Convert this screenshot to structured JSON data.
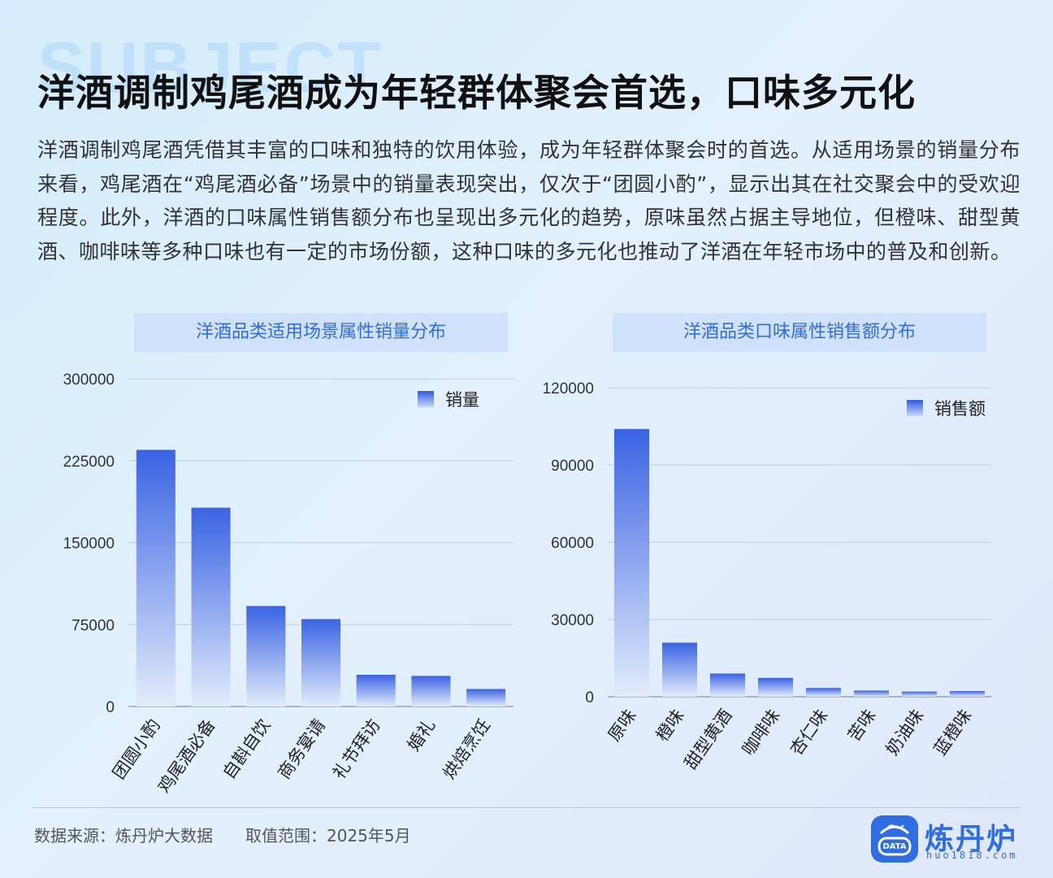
{
  "background_word": "SUBJECT",
  "title": "洋酒调制鸡尾酒成为年轻群体聚会首选，口味多元化",
  "description": "洋酒调制鸡尾酒凭借其丰富的口味和独特的饮用体验，成为年轻群体聚会时的首选。从适用场景的销量分布来看，鸡尾酒在“鸡尾酒必备”场景中的销量表现突出，仅次于“团圆小酌”，显示出其在社交聚会中的受欢迎程度。此外，洋酒的口味属性销售额分布也呈现出多元化的趋势，原味虽然占据主导地位，但橙味、甜型黄酒、咖啡味等多种口味也有一定的市场份额，这种口味的多元化也推动了洋酒在年轻市场中的普及和创新。",
  "colors": {
    "accent": "#2f6de0",
    "bar_top": "#3a63e3",
    "bar_bottom": "#e3ecfb"
  },
  "chart_data": [
    {
      "type": "bar",
      "title": "洋酒品类适用场景属性销量分布",
      "categories": [
        "团圆小酌",
        "鸡尾酒必备",
        "自斟自饮",
        "商务宴请",
        "礼节拜访",
        "婚礼",
        "烘焙烹饪"
      ],
      "series": [
        {
          "name": "销量",
          "values": [
            235000,
            182000,
            92000,
            80000,
            29000,
            28000,
            16000
          ]
        }
      ],
      "y_ticks": [
        0,
        75000,
        150000,
        225000,
        300000
      ],
      "ylim": [
        0,
        300000
      ],
      "grid": true,
      "legend": "top-right"
    },
    {
      "type": "bar",
      "title": "洋酒品类口味属性销售额分布",
      "categories": [
        "原味",
        "橙味",
        "甜型黄酒",
        "咖啡味",
        "杏仁味",
        "苦味",
        "奶油味",
        "蓝橙味"
      ],
      "series": [
        {
          "name": "销售额",
          "values": [
            104000,
            21000,
            9000,
            7300,
            3400,
            2400,
            2000,
            2200
          ]
        }
      ],
      "y_ticks": [
        0,
        30000,
        60000,
        90000,
        120000
      ],
      "ylim": [
        0,
        120000
      ],
      "grid": true,
      "legend": "top-right"
    }
  ],
  "footer": {
    "source": "数据来源：炼丹炉大数据　　取值范围：2025年5月",
    "logo_name": "炼丹炉",
    "logo_badge": "DATA",
    "logo_url": "huo1818.com"
  }
}
